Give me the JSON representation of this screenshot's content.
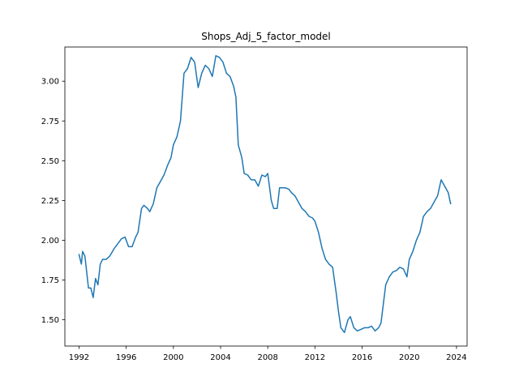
{
  "chart_data": {
    "type": "line",
    "title": "Shops_Adj_5_factor_model",
    "xlabel": "",
    "ylabel": "",
    "xlim": [
      1990.8,
      2024.9
    ],
    "ylim": [
      1.335,
      3.215
    ],
    "xticks": [
      1992,
      1996,
      2000,
      2004,
      2008,
      2012,
      2016,
      2020,
      2024
    ],
    "yticks": [
      1.5,
      1.75,
      2.0,
      2.25,
      2.5,
      2.75,
      3.0
    ],
    "ytick_labels": [
      "1.50",
      "1.75",
      "2.00",
      "2.25",
      "2.50",
      "2.75",
      "3.00"
    ],
    "grid": false,
    "legend": "none",
    "series": [
      {
        "color": "#1f77b4",
        "x": [
          1992.0,
          1992.2,
          1992.3,
          1992.5,
          1992.8,
          1993.0,
          1993.2,
          1993.4,
          1993.6,
          1993.8,
          1994.0,
          1994.3,
          1994.6,
          1995.0,
          1995.3,
          1995.6,
          1995.9,
          1996.2,
          1996.5,
          1996.8,
          1997.0,
          1997.3,
          1997.5,
          1997.8,
          1998.0,
          1998.3,
          1998.6,
          1998.9,
          1999.2,
          1999.5,
          1999.8,
          2000.0,
          2000.3,
          2000.6,
          2000.9,
          2001.2,
          2001.5,
          2001.8,
          2002.1,
          2002.4,
          2002.7,
          2003.0,
          2003.3,
          2003.6,
          2003.9,
          2004.2,
          2004.5,
          2004.8,
          2005.1,
          2005.3,
          2005.5,
          2005.8,
          2006.0,
          2006.3,
          2006.6,
          2006.9,
          2007.2,
          2007.5,
          2007.8,
          2008.0,
          2008.3,
          2008.5,
          2008.8,
          2009.0,
          2009.2,
          2009.5,
          2009.8,
          2010.0,
          2010.3,
          2010.6,
          2010.9,
          2011.2,
          2011.5,
          2011.8,
          2012.0,
          2012.3,
          2012.6,
          2012.9,
          2013.2,
          2013.5,
          2013.8,
          2014.0,
          2014.2,
          2014.5,
          2014.8,
          2015.0,
          2015.3,
          2015.6,
          2015.9,
          2016.2,
          2016.5,
          2016.8,
          2017.1,
          2017.4,
          2017.6,
          2017.8,
          2018.0,
          2018.3,
          2018.6,
          2018.9,
          2019.2,
          2019.5,
          2019.8,
          2020.0,
          2020.3,
          2020.6,
          2020.9,
          2021.2,
          2021.5,
          2021.8,
          2022.1,
          2022.4,
          2022.7,
          2023.0,
          2023.3,
          2023.5
        ],
        "y": [
          1.91,
          1.85,
          1.93,
          1.9,
          1.7,
          1.7,
          1.64,
          1.76,
          1.72,
          1.85,
          1.88,
          1.88,
          1.9,
          1.95,
          1.98,
          2.01,
          2.02,
          1.96,
          1.96,
          2.02,
          2.05,
          2.2,
          2.22,
          2.2,
          2.18,
          2.23,
          2.33,
          2.37,
          2.41,
          2.47,
          2.52,
          2.6,
          2.65,
          2.75,
          3.05,
          3.08,
          3.15,
          3.12,
          2.96,
          3.05,
          3.1,
          3.08,
          3.03,
          3.16,
          3.15,
          3.12,
          3.05,
          3.03,
          2.97,
          2.9,
          2.6,
          2.52,
          2.42,
          2.41,
          2.38,
          2.38,
          2.34,
          2.41,
          2.4,
          2.42,
          2.25,
          2.2,
          2.2,
          2.33,
          2.33,
          2.33,
          2.32,
          2.3,
          2.28,
          2.24,
          2.2,
          2.18,
          2.15,
          2.14,
          2.12,
          2.05,
          1.95,
          1.88,
          1.85,
          1.83,
          1.67,
          1.55,
          1.45,
          1.42,
          1.5,
          1.52,
          1.45,
          1.43,
          1.44,
          1.45,
          1.45,
          1.46,
          1.43,
          1.45,
          1.48,
          1.6,
          1.72,
          1.77,
          1.8,
          1.81,
          1.83,
          1.82,
          1.77,
          1.88,
          1.93,
          2.0,
          2.05,
          2.15,
          2.18,
          2.2,
          2.24,
          2.28,
          2.38,
          2.34,
          2.3,
          2.23
        ]
      }
    ]
  }
}
